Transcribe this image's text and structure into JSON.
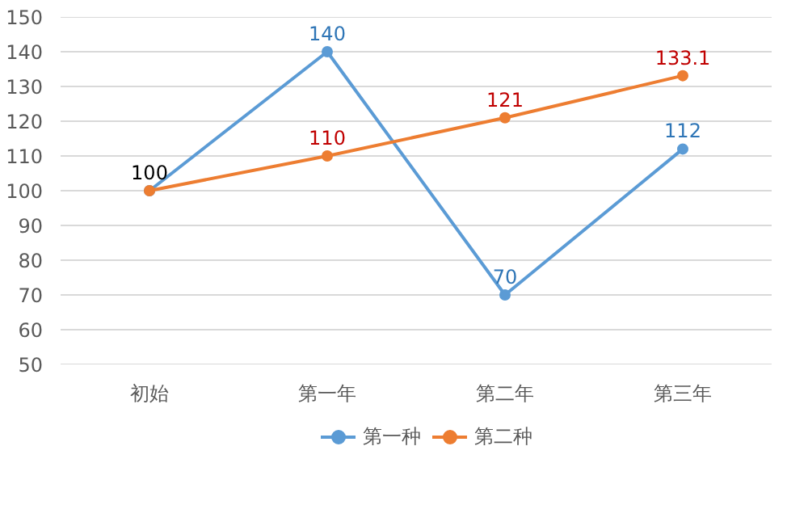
{
  "chart_data": {
    "type": "line",
    "categories": [
      "初始",
      "第一年",
      "第二年",
      "第三年"
    ],
    "series": [
      {
        "name": "第一种",
        "color": "#5b9bd5",
        "values": [
          100,
          140,
          70,
          112
        ],
        "value_labels": [
          "100",
          "140",
          "70",
          "112"
        ]
      },
      {
        "name": "第二种",
        "color": "#ed7d31",
        "values": [
          100,
          110,
          121,
          133.1
        ],
        "value_labels": [
          null,
          "110",
          "121",
          "133.1"
        ]
      }
    ],
    "ylim": [
      50,
      150
    ],
    "yticks": [
      50,
      60,
      70,
      80,
      90,
      100,
      110,
      120,
      130,
      140,
      150
    ],
    "grid": "y",
    "legend": "bottom",
    "marker": "circle",
    "line_style": "solid"
  }
}
